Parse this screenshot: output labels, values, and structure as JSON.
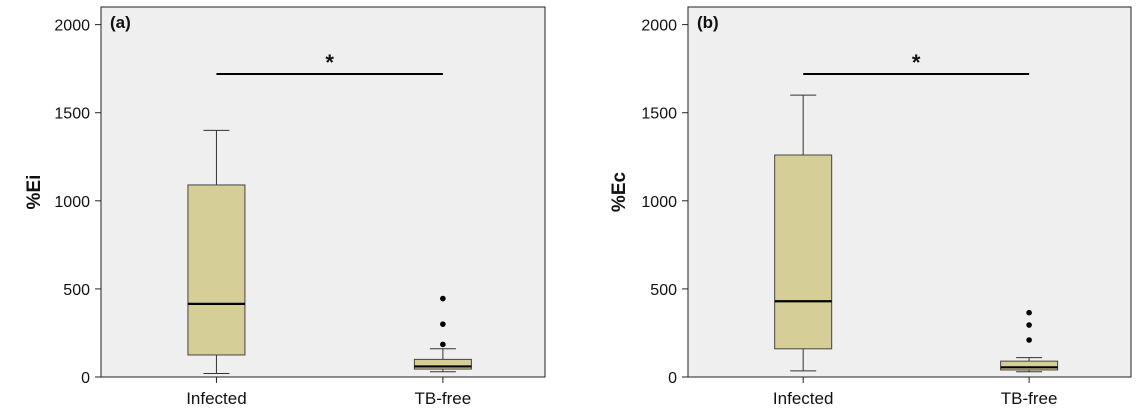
{
  "chart_data": [
    {
      "type": "box",
      "panel_label": "(a)",
      "ylabel": "%Ei",
      "ylim": [
        0,
        2100
      ],
      "yticks": [
        "0",
        "500",
        "1000",
        "1500",
        "2000"
      ],
      "ytick_values": [
        0,
        500,
        1000,
        1500,
        2000
      ],
      "categories": [
        "Infected",
        "TB-free"
      ],
      "boxes": [
        {
          "category": "Infected",
          "whisker_low": 20,
          "q1": 125,
          "median": 415,
          "q3": 1090,
          "whisker_high": 1400,
          "outliers": []
        },
        {
          "category": "TB-free",
          "whisker_low": 30,
          "q1": 45,
          "median": 60,
          "q3": 100,
          "whisker_high": 160,
          "outliers": [
            185,
            300,
            445
          ]
        }
      ],
      "significance": {
        "marker": "*",
        "y": 1720
      },
      "grid": false,
      "box_color": "#d5cf97",
      "background_color": "#efefef"
    },
    {
      "type": "box",
      "panel_label": "(b)",
      "ylabel": "%Ec",
      "ylim": [
        0,
        2100
      ],
      "yticks": [
        "0",
        "500",
        "1000",
        "1500",
        "2000"
      ],
      "ytick_values": [
        0,
        500,
        1000,
        1500,
        2000
      ],
      "categories": [
        "Infected",
        "TB-free"
      ],
      "boxes": [
        {
          "category": "Infected",
          "whisker_low": 35,
          "q1": 160,
          "median": 430,
          "q3": 1260,
          "whisker_high": 1600,
          "outliers": []
        },
        {
          "category": "TB-free",
          "whisker_low": 30,
          "q1": 40,
          "median": 55,
          "q3": 90,
          "whisker_high": 110,
          "outliers": [
            210,
            295,
            365
          ]
        }
      ],
      "significance": {
        "marker": "*",
        "y": 1720
      },
      "grid": false,
      "box_color": "#d5cf97",
      "background_color": "#efefef"
    }
  ]
}
